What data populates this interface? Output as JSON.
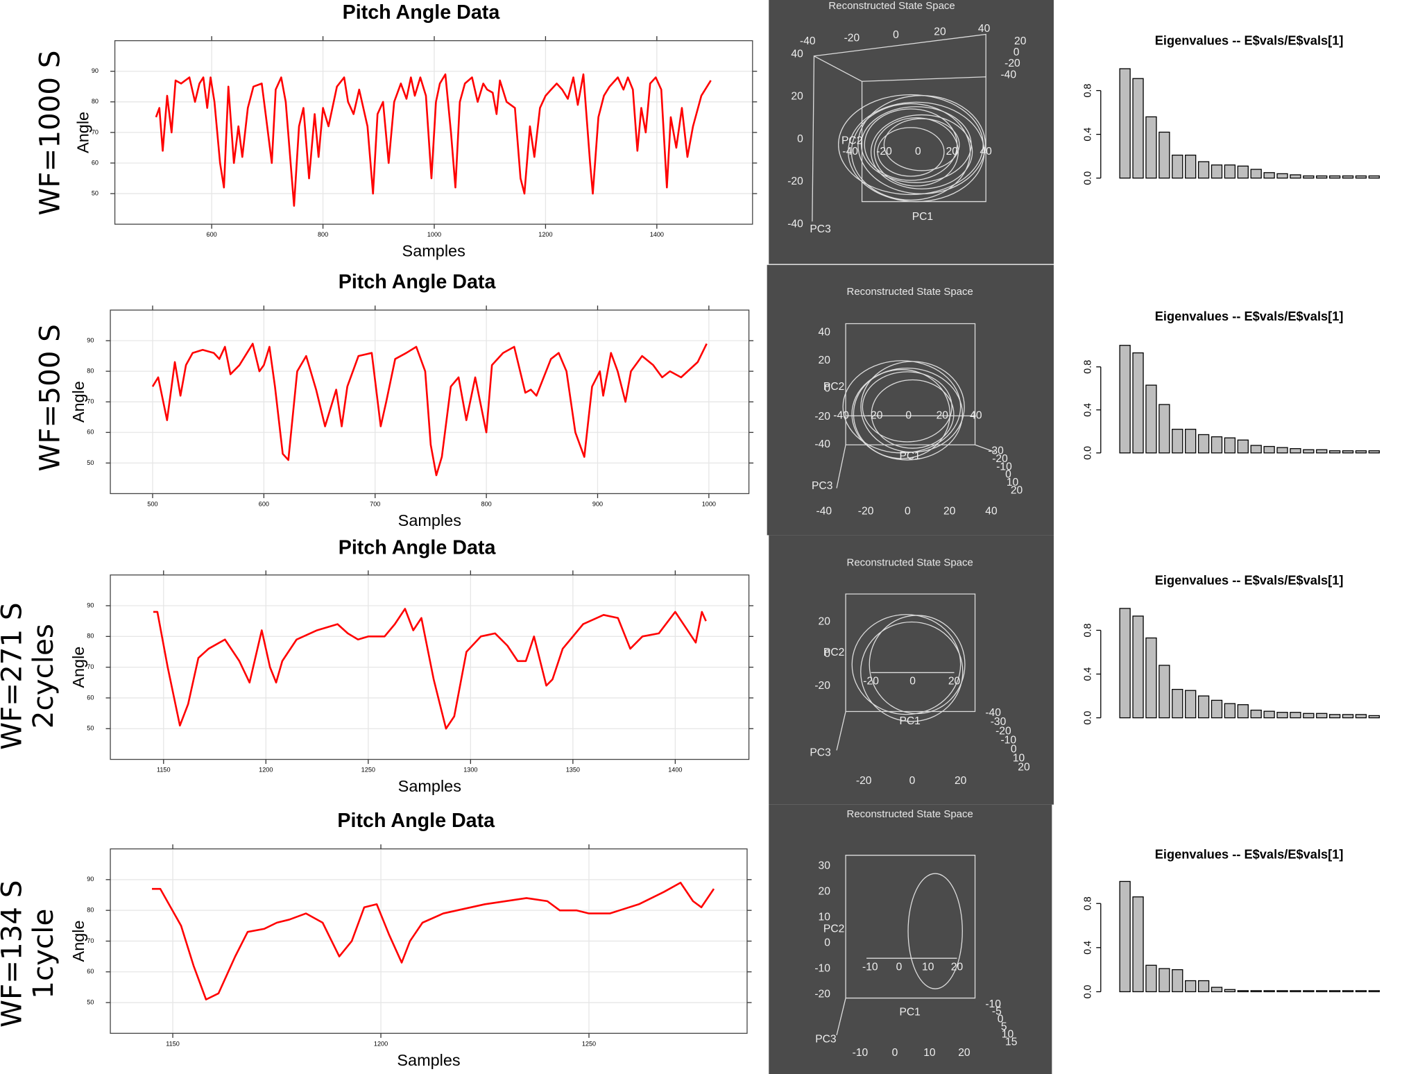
{
  "row_labels": [
    [
      "WF=1000 S"
    ],
    [
      "WF=500 S"
    ],
    [
      "WF=271 S",
      "2cycles"
    ],
    [
      "WF=134 S",
      "1cycle"
    ]
  ],
  "chart_data": [
    {
      "type": "line",
      "title": "Pitch Angle Data",
      "xlabel": "Samples",
      "ylabel": "Angle",
      "color": "#ff0000",
      "grid": true,
      "xlim": [
        426,
        1572
      ],
      "ylim": [
        40,
        100
      ],
      "xticks": [
        600,
        800,
        1000,
        1200,
        1400
      ],
      "yticks": [
        50,
        60,
        70,
        80,
        90
      ],
      "x": [
        500,
        506,
        512,
        520,
        528,
        535,
        545,
        560,
        570,
        578,
        585,
        592,
        598,
        605,
        615,
        622,
        630,
        640,
        648,
        655,
        665,
        675,
        690,
        697,
        708,
        715,
        725,
        733,
        748,
        757,
        765,
        775,
        785,
        792,
        800,
        810,
        825,
        838,
        845,
        855,
        865,
        880,
        890,
        898,
        908,
        918,
        928,
        940,
        950,
        958,
        965,
        975,
        985,
        995,
        1003,
        1010,
        1020,
        1030,
        1038,
        1046,
        1055,
        1068,
        1078,
        1088,
        1095,
        1105,
        1112,
        1118,
        1130,
        1145,
        1155,
        1162,
        1172,
        1180,
        1190,
        1200,
        1210,
        1220,
        1230,
        1240,
        1250,
        1258,
        1268,
        1280,
        1285,
        1295,
        1305,
        1315,
        1330,
        1340,
        1348,
        1357,
        1365,
        1372,
        1380,
        1388,
        1398,
        1408,
        1418,
        1425,
        1435,
        1445,
        1455,
        1465,
        1480,
        1497
      ],
      "values": [
        75,
        78,
        64,
        82,
        70,
        87,
        86,
        88,
        80,
        86,
        88,
        78,
        88,
        80,
        60,
        52,
        85,
        60,
        72,
        62,
        78,
        85,
        86,
        76,
        60,
        84,
        88,
        80,
        46,
        72,
        78,
        55,
        76,
        62,
        78,
        72,
        85,
        88,
        80,
        76,
        84,
        72,
        50,
        76,
        80,
        60,
        80,
        86,
        81,
        88,
        82,
        88,
        82,
        55,
        80,
        86,
        89,
        70,
        52,
        80,
        86,
        88,
        80,
        86,
        84,
        83,
        76,
        87,
        80,
        78,
        55,
        50,
        72,
        62,
        78,
        82,
        84,
        86,
        84,
        81,
        88,
        79,
        89,
        60,
        50,
        75,
        82,
        85,
        88,
        84,
        88,
        84,
        64,
        78,
        70,
        86,
        88,
        84,
        52,
        75,
        65,
        78,
        62,
        72,
        82,
        87
      ]
    },
    {
      "type": "scatter3d",
      "title": "Reconstructed State Space",
      "axis_labels": [
        "PC1",
        "PC2",
        "PC3"
      ],
      "tick_groups": [
        [
          40,
          20,
          0,
          -20,
          -40
        ],
        [
          -40,
          -20,
          0,
          20,
          40
        ],
        [
          -40,
          -20,
          0,
          20,
          40
        ],
        [
          20,
          0,
          -20,
          -40
        ]
      ]
    },
    {
      "type": "bar",
      "title": "Eigenvalues -- E$vals/E$vals[1]",
      "color": "#bebebe",
      "ylim": [
        0,
        1
      ],
      "yticks": [
        {
          "value": 0,
          "label": "0.0"
        },
        0.4,
        0.8
      ],
      "values": [
        1,
        0.91,
        0.56,
        0.42,
        0.21,
        0.21,
        0.15,
        0.12,
        0.12,
        0.11,
        0.08,
        0.05,
        0.04,
        0.03,
        0.02,
        0.02,
        0.02,
        0.02,
        0.02,
        0.02
      ]
    },
    {
      "type": "line",
      "title": "Pitch Angle Data",
      "xlabel": "Samples",
      "ylabel": "Angle",
      "color": "#ff0000",
      "grid": true,
      "xlim": [
        462,
        1036
      ],
      "ylim": [
        40,
        100
      ],
      "xticks": [
        500,
        600,
        700,
        800,
        900,
        1000
      ],
      "yticks": [
        50,
        60,
        70,
        80,
        90
      ],
      "x": [
        500,
        505,
        513,
        520,
        525,
        530,
        536,
        545,
        555,
        560,
        565,
        570,
        578,
        590,
        596,
        600,
        605,
        610,
        617,
        622,
        630,
        638,
        647,
        655,
        665,
        670,
        675,
        685,
        697,
        705,
        710,
        718,
        728,
        737,
        745,
        750,
        755,
        760,
        768,
        775,
        782,
        790,
        800,
        805,
        815,
        825,
        835,
        840,
        845,
        858,
        865,
        872,
        880,
        888,
        895,
        902,
        905,
        912,
        918,
        925,
        930,
        940,
        950,
        958,
        965,
        975,
        990,
        998
      ],
      "values": [
        75,
        78,
        64,
        83,
        72,
        82,
        86,
        87,
        86,
        84,
        88,
        79,
        82,
        89,
        80,
        82,
        88,
        75,
        53,
        51,
        80,
        85,
        74,
        62,
        74,
        62,
        75,
        85,
        86,
        62,
        70,
        84,
        86,
        88,
        80,
        56,
        46,
        52,
        75,
        78,
        64,
        78,
        60,
        82,
        86,
        88,
        73,
        74,
        72,
        84,
        86,
        80,
        60,
        52,
        75,
        80,
        72,
        86,
        80,
        70,
        80,
        85,
        82,
        78,
        80,
        78,
        83,
        89
      ]
    },
    {
      "type": "scatter3d",
      "title": "Reconstructed State Space",
      "axis_labels": [
        "PC1",
        "PC2",
        "PC3"
      ],
      "tick_groups": [
        [
          -40,
          -20,
          0,
          20,
          40
        ],
        [
          40,
          20,
          0,
          -20,
          -40
        ],
        [
          -40,
          -20,
          0,
          20,
          40
        ],
        [
          -30,
          -20,
          -10,
          0,
          10,
          20
        ]
      ]
    },
    {
      "type": "bar",
      "title": "Eigenvalues -- E$vals/E$vals[1]",
      "color": "#bebebe",
      "ylim": [
        0,
        1
      ],
      "yticks": [
        {
          "value": 0,
          "label": "0.0"
        },
        0.4,
        0.8
      ],
      "values": [
        1,
        0.93,
        0.63,
        0.45,
        0.22,
        0.22,
        0.17,
        0.15,
        0.14,
        0.12,
        0.07,
        0.06,
        0.05,
        0.04,
        0.03,
        0.03,
        0.02,
        0.02,
        0.02,
        0.02
      ]
    },
    {
      "type": "line",
      "title": "Pitch Angle Data",
      "xlabel": "Samples",
      "ylabel": "Angle",
      "color": "#ff0000",
      "grid": true,
      "xlim": [
        1124,
        1436
      ],
      "ylim": [
        40,
        100
      ],
      "xticks": [
        1150,
        1200,
        1250,
        1300,
        1350,
        1400
      ],
      "yticks": [
        50,
        60,
        70,
        80,
        90
      ],
      "x": [
        1145,
        1147,
        1152,
        1158,
        1162,
        1167,
        1172,
        1180,
        1187,
        1192,
        1198,
        1202,
        1205,
        1208,
        1215,
        1225,
        1235,
        1240,
        1245,
        1250,
        1258,
        1263,
        1268,
        1272,
        1276,
        1282,
        1288,
        1292,
        1298,
        1305,
        1312,
        1318,
        1323,
        1327,
        1331,
        1337,
        1340,
        1345,
        1355,
        1365,
        1372,
        1378,
        1384,
        1392,
        1400,
        1405,
        1410,
        1413,
        1415
      ],
      "values": [
        88,
        88,
        70,
        51,
        58,
        73,
        76,
        79,
        72,
        65,
        82,
        70,
        65,
        72,
        79,
        82,
        84,
        81,
        79,
        80,
        80,
        84,
        89,
        82,
        86,
        66,
        50,
        54,
        75,
        80,
        81,
        77,
        72,
        72,
        80,
        64,
        66,
        76,
        84,
        87,
        86,
        76,
        80,
        81,
        88,
        83,
        78,
        88,
        85
      ]
    },
    {
      "type": "scatter3d",
      "title": "Reconstructed State Space",
      "axis_labels": [
        "PC1",
        "PC2",
        "PC3"
      ],
      "tick_groups": [
        [
          -20,
          0,
          20
        ],
        [
          20,
          0,
          -20
        ],
        [
          -20,
          0,
          20
        ],
        [
          -40,
          -30,
          -20,
          -10,
          0,
          10,
          20
        ]
      ]
    },
    {
      "type": "bar",
      "title": "Eigenvalues -- E$vals/E$vals[1]",
      "color": "#bebebe",
      "ylim": [
        0,
        1
      ],
      "yticks": [
        {
          "value": 0,
          "label": "0.0"
        },
        0.4,
        0.8
      ],
      "values": [
        1,
        0.93,
        0.73,
        0.48,
        0.26,
        0.25,
        0.2,
        0.16,
        0.13,
        0.12,
        0.07,
        0.06,
        0.05,
        0.05,
        0.04,
        0.04,
        0.03,
        0.03,
        0.03,
        0.02
      ]
    },
    {
      "type": "line",
      "title": "Pitch Angle Data",
      "xlabel": "Samples",
      "ylabel": "Angle",
      "color": "#ff0000",
      "grid": true,
      "xlim": [
        1135,
        1288
      ],
      "ylim": [
        40,
        100
      ],
      "xticks": [
        1150,
        1200,
        1250
      ],
      "yticks": [
        50,
        60,
        70,
        80,
        90
      ],
      "x": [
        1145,
        1147,
        1152,
        1155,
        1158,
        1161,
        1165,
        1168,
        1172,
        1175,
        1178,
        1182,
        1186,
        1190,
        1193,
        1196,
        1199,
        1202,
        1205,
        1207,
        1210,
        1215,
        1225,
        1235,
        1240,
        1243,
        1247,
        1250,
        1255,
        1262,
        1268,
        1272,
        1275,
        1277,
        1280
      ],
      "values": [
        87,
        87,
        75,
        62,
        51,
        53,
        65,
        73,
        74,
        76,
        77,
        79,
        76,
        65,
        70,
        81,
        82,
        72,
        63,
        70,
        76,
        79,
        82,
        84,
        83,
        80,
        80,
        79,
        79,
        82,
        86,
        89,
        83,
        81,
        87
      ]
    },
    {
      "type": "scatter3d",
      "title": "Reconstructed State Space",
      "axis_labels": [
        "PC1",
        "PC2",
        "PC3"
      ],
      "tick_groups": [
        [
          -10,
          0,
          10,
          20
        ],
        [
          30,
          20,
          10,
          0,
          -10,
          -20
        ],
        [
          -10,
          0,
          10,
          20
        ],
        [
          -10,
          -5,
          0,
          5,
          10,
          15
        ]
      ]
    },
    {
      "type": "bar",
      "title": "Eigenvalues -- E$vals/E$vals[1]",
      "color": "#bebebe",
      "ylim": [
        0,
        1
      ],
      "yticks": [
        {
          "value": 0,
          "label": "0.0"
        },
        0.4,
        0.8
      ],
      "values": [
        1,
        0.86,
        0.24,
        0.21,
        0.2,
        0.1,
        0.1,
        0.04,
        0.02,
        0.01,
        0.01,
        0.01,
        0.01,
        0.01,
        0.01,
        0.01,
        0.01,
        0.01,
        0.01,
        0.01
      ]
    }
  ]
}
